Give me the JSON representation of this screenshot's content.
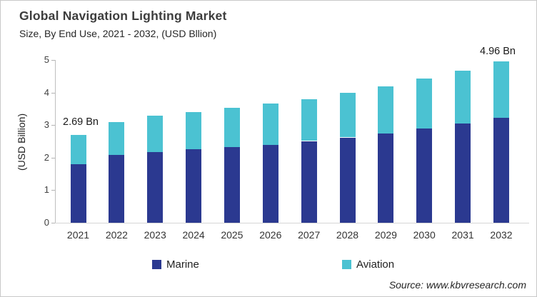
{
  "header": {
    "title": "Global Navigation Lighting Market",
    "subtitle": "Size, By End Use, 2021 - 2032, (USD Bllion)"
  },
  "chart_data": {
    "type": "bar",
    "stacked": true,
    "title": "Global Navigation Lighting Market Size, By End Use, 2021 - 2032, (USD Bllion)",
    "categories": [
      "2021",
      "2022",
      "2023",
      "2024",
      "2025",
      "2026",
      "2027",
      "2028",
      "2029",
      "2030",
      "2031",
      "2032"
    ],
    "series": [
      {
        "name": "Marine",
        "color": "#2B3990",
        "values": [
          1.8,
          2.08,
          2.18,
          2.25,
          2.33,
          2.4,
          2.51,
          2.62,
          2.75,
          2.9,
          3.04,
          3.23
        ]
      },
      {
        "name": "Aviation",
        "color": "#4BC2D2",
        "values": [
          0.89,
          1.02,
          1.1,
          1.15,
          1.2,
          1.26,
          1.29,
          1.38,
          1.45,
          1.52,
          1.64,
          1.73
        ]
      }
    ],
    "totals": [
      2.69,
      3.1,
      3.28,
      3.4,
      3.53,
      3.66,
      3.8,
      4.0,
      4.2,
      4.42,
      4.68,
      4.96
    ],
    "xlabel": "",
    "ylabel": "(USD Billion)",
    "ylim": [
      0,
      5
    ],
    "yticks": [
      0,
      1,
      2,
      3,
      4,
      5
    ],
    "grid": false,
    "legend_position": "bottom",
    "annotations": [
      {
        "text": "2.69 Bn",
        "category": "2021"
      },
      {
        "text": "4.96 Bn",
        "category": "2032"
      }
    ]
  },
  "legend": {
    "items": [
      {
        "label": "Marine",
        "color": "#2B3990"
      },
      {
        "label": "Aviation",
        "color": "#4BC2D2"
      }
    ]
  },
  "footer": {
    "source": "Source: www.kbvresearch.com"
  }
}
